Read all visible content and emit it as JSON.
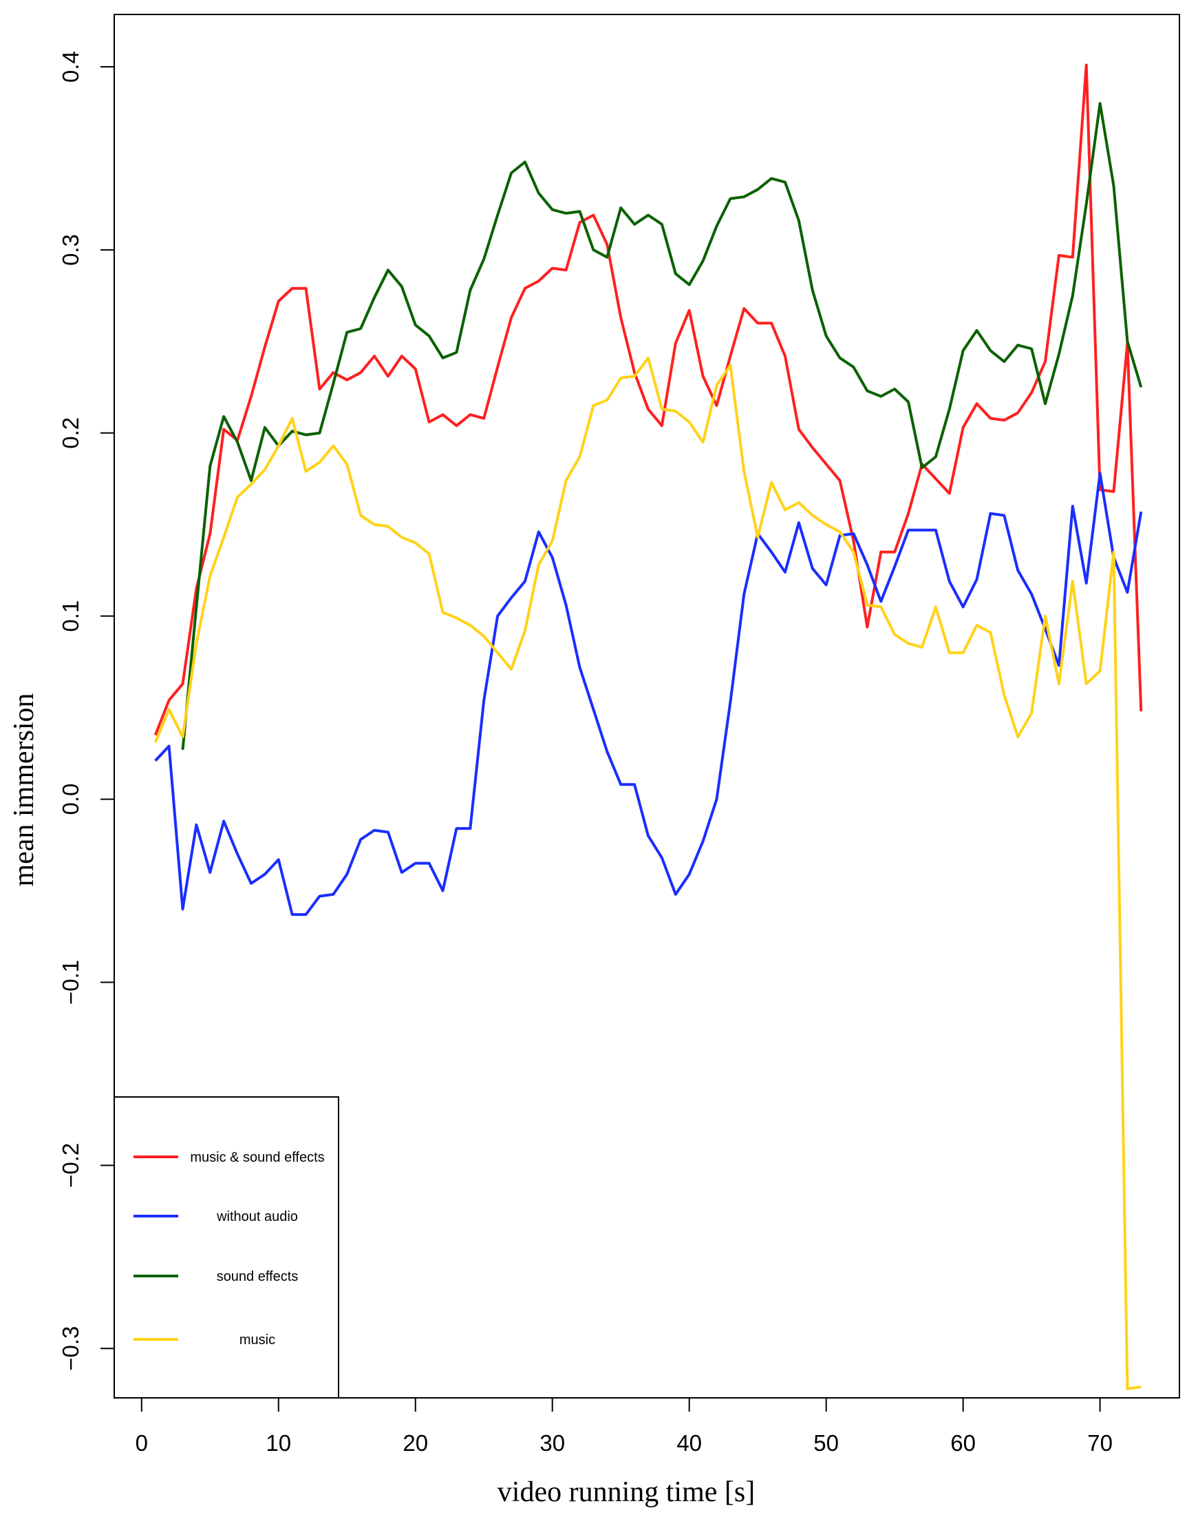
{
  "chart_data": {
    "type": "line",
    "x_label": "video running time [s]",
    "y_label": "mean immersion",
    "x": [
      1,
      2,
      3,
      4,
      5,
      6,
      7,
      8,
      9,
      10,
      11,
      12,
      13,
      14,
      15,
      16,
      17,
      18,
      19,
      20,
      21,
      22,
      23,
      24,
      25,
      26,
      27,
      28,
      29,
      30,
      31,
      32,
      33,
      34,
      35,
      36,
      37,
      38,
      39,
      40,
      41,
      42,
      43,
      44,
      45,
      46,
      47,
      48,
      49,
      50,
      51,
      52,
      53,
      54,
      55,
      56,
      57,
      58,
      59,
      60,
      61,
      62,
      63,
      64,
      65,
      66,
      67,
      68,
      69,
      70,
      71,
      72,
      73
    ],
    "series": [
      {
        "name": "music & sound effects",
        "color": "#ff2020",
        "values": [
          0.035,
          0.054,
          0.063,
          0.115,
          0.145,
          0.202,
          0.196,
          0.22,
          0.247,
          0.272,
          0.279,
          0.279,
          0.224,
          0.233,
          0.229,
          0.233,
          0.242,
          0.231,
          0.242,
          0.235,
          0.206,
          0.21,
          0.204,
          0.21,
          0.208,
          0.236,
          0.263,
          0.279,
          0.283,
          0.29,
          0.289,
          0.315,
          0.319,
          0.303,
          0.263,
          0.233,
          0.213,
          0.204,
          0.249,
          0.267,
          0.231,
          0.215,
          0.242,
          0.268,
          0.26,
          0.26,
          0.242,
          0.202,
          0.192,
          0.183,
          0.174,
          0.141,
          0.094,
          0.135,
          0.135,
          0.156,
          0.183,
          0.175,
          0.167,
          0.203,
          0.216,
          0.208,
          0.207,
          0.211,
          0.222,
          0.239,
          0.297,
          0.296,
          0.401,
          0.169,
          0.168,
          0.249,
          0.048
        ]
      },
      {
        "name": "without audio",
        "color": "#1a2eff",
        "values": [
          0.021,
          0.029,
          -0.06,
          -0.014,
          -0.04,
          -0.012,
          -0.03,
          -0.046,
          -0.041,
          -0.033,
          -0.063,
          -0.063,
          -0.053,
          -0.052,
          -0.041,
          -0.022,
          -0.017,
          -0.018,
          -0.04,
          -0.035,
          -0.035,
          -0.05,
          -0.016,
          -0.016,
          0.054,
          0.1,
          0.11,
          0.119,
          0.146,
          0.132,
          0.106,
          0.072,
          0.049,
          0.026,
          0.008,
          0.008,
          -0.02,
          -0.032,
          -0.052,
          -0.041,
          -0.023,
          0.0,
          0.053,
          0.112,
          0.145,
          0.135,
          0.124,
          0.151,
          0.126,
          0.117,
          0.144,
          0.145,
          0.128,
          0.108,
          0.127,
          0.147,
          0.147,
          0.147,
          0.119,
          0.105,
          0.12,
          0.156,
          0.155,
          0.125,
          0.112,
          0.093,
          0.073,
          0.16,
          0.118,
          0.178,
          0.132,
          0.113,
          0.157
        ]
      },
      {
        "name": "sound effects",
        "color": "#0b6100",
        "values": [
          null,
          null,
          0.027,
          0.105,
          0.182,
          0.209,
          0.195,
          0.174,
          0.203,
          0.193,
          0.201,
          0.199,
          0.2,
          0.227,
          0.255,
          0.257,
          0.274,
          0.289,
          0.28,
          0.259,
          0.253,
          0.241,
          0.244,
          0.278,
          0.295,
          0.319,
          0.342,
          0.348,
          0.331,
          0.322,
          0.32,
          0.321,
          0.3,
          0.296,
          0.323,
          0.314,
          0.319,
          0.314,
          0.287,
          0.281,
          0.294,
          0.313,
          0.328,
          0.329,
          0.333,
          0.339,
          0.337,
          0.316,
          0.278,
          0.253,
          0.241,
          0.236,
          0.223,
          0.22,
          0.224,
          0.217,
          0.181,
          0.187,
          0.213,
          0.245,
          0.256,
          0.245,
          0.239,
          0.248,
          0.246,
          0.216,
          0.243,
          0.275,
          0.325,
          0.38,
          0.335,
          0.25,
          0.225
        ]
      },
      {
        "name": "music",
        "color": "#ffd21a",
        "values": [
          0.031,
          0.049,
          0.034,
          0.085,
          0.122,
          0.143,
          0.165,
          0.172,
          0.18,
          0.193,
          0.208,
          0.179,
          0.184,
          0.193,
          0.183,
          0.155,
          0.15,
          0.149,
          0.143,
          0.14,
          0.134,
          0.102,
          0.099,
          0.095,
          0.089,
          0.08,
          0.071,
          0.092,
          0.128,
          0.141,
          0.174,
          0.187,
          0.215,
          0.218,
          0.23,
          0.231,
          0.241,
          0.213,
          0.212,
          0.206,
          0.195,
          0.226,
          0.237,
          0.179,
          0.143,
          0.173,
          0.158,
          0.162,
          0.155,
          0.15,
          0.146,
          0.135,
          0.106,
          0.105,
          0.09,
          0.085,
          0.083,
          0.105,
          0.08,
          0.08,
          0.095,
          0.091,
          0.057,
          0.034,
          0.047,
          0.1,
          0.063,
          0.119,
          0.063,
          0.07,
          0.135,
          -0.322,
          -0.321
        ]
      }
    ],
    "xlim": [
      -2,
      75.8
    ],
    "ylim": [
      -0.327,
      0.4286
    ],
    "xticks": [
      0,
      10,
      20,
      30,
      40,
      50,
      60,
      70
    ],
    "yticks": [
      {
        "value": -0.3,
        "label": "−0.3"
      },
      {
        "value": -0.2,
        "label": "−0.2"
      },
      {
        "value": -0.1,
        "label": "−0.1"
      },
      {
        "value": 0,
        "label": "0.0"
      },
      0.1,
      0.2,
      0.3,
      0.4
    ],
    "legend_position": "bottomleft",
    "grid": false
  }
}
